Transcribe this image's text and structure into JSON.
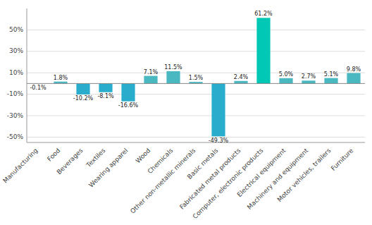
{
  "chart_data": {
    "type": "bar",
    "categories": [
      "Manufacturing",
      "Food",
      "Beverages",
      "Textiles",
      "Wearing apparel",
      "Wood",
      "Chemicals",
      "Other non-metallic minerals",
      "Basic metals",
      "Fabricated metal products",
      "Computer, electronic products",
      "Electrical equipment",
      "Machinery and equipment",
      "Motor vehicles, trailers",
      "Furniture"
    ],
    "values": [
      -0.1,
      1.8,
      -10.2,
      -8.1,
      -16.6,
      7.1,
      11.5,
      1.5,
      -49.3,
      2.4,
      61.2,
      5.0,
      2.7,
      5.1,
      9.8
    ],
    "value_labels": [
      "-0.1%",
      "1.8%",
      "-10.2%",
      "-8.1%",
      "-16.6%",
      "7.1%",
      "11.5%",
      "1.5%",
      "-49.3%",
      "2.4%",
      "61.2%",
      "5.0%",
      "2.7%",
      "5.1%",
      "9.8%"
    ],
    "colors": [
      "#4472a8",
      "#4ab8c0",
      "#2aaccc",
      "#2aaccc",
      "#2aaccc",
      "#4ab8c0",
      "#4ab8c0",
      "#4ab8c0",
      "#2aaccc",
      "#4ab8c0",
      "#00c8b4",
      "#4ab8c0",
      "#4ab8c0",
      "#4ab8c0",
      "#4ab8c0"
    ],
    "ylim": [
      -55,
      70
    ],
    "yticks": [
      {
        "value": -50,
        "label": "-50%"
      },
      {
        "value": -30,
        "label": "-30%"
      },
      {
        "value": -10,
        "label": "-10%"
      },
      {
        "value": 10,
        "label": "10%"
      },
      {
        "value": 30,
        "label": "30%"
      },
      {
        "value": 50,
        "label": "50%"
      }
    ],
    "grid": true,
    "data_labels": true
  }
}
